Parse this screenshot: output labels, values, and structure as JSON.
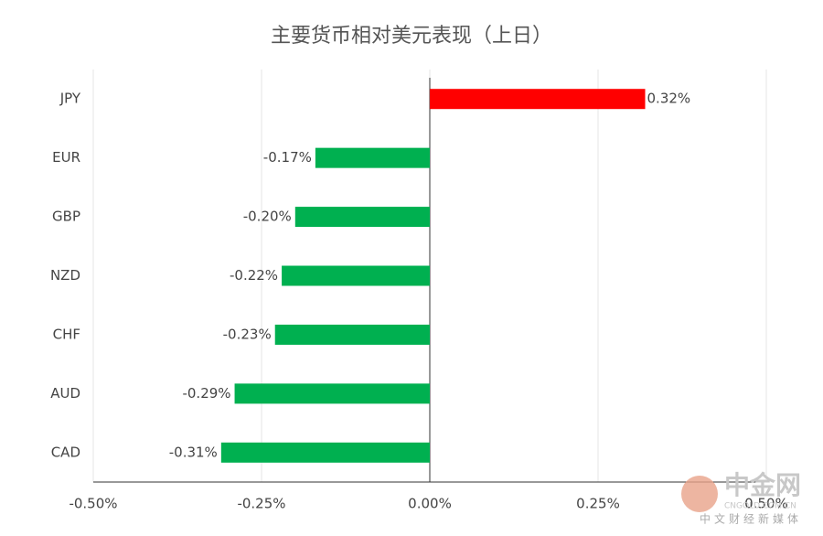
{
  "chart_data": {
    "type": "hbar",
    "title": "主要货币相对美元表现（上日）",
    "categories": [
      "JPY",
      "EUR",
      "GBP",
      "NZD",
      "CHF",
      "AUD",
      "CAD"
    ],
    "values": [
      0.32,
      -0.17,
      -0.2,
      -0.22,
      -0.23,
      -0.29,
      -0.31
    ],
    "value_labels": [
      "0.32%",
      "-0.17%",
      "-0.20%",
      "-0.22%",
      "-0.23%",
      "-0.29%",
      "-0.31%"
    ],
    "positive_color": "#ff0000",
    "negative_color": "#00b050",
    "xlim": [
      -0.5,
      0.5
    ],
    "xticks": [
      {
        "value": -0.5,
        "label": "-0.50%"
      },
      {
        "value": -0.25,
        "label": "-0.25%"
      },
      {
        "value": 0,
        "label": "0.00%"
      },
      {
        "value": 0.25,
        "label": "0.25%"
      },
      {
        "value": 0.5,
        "label": "0.50%"
      }
    ],
    "grid": true
  },
  "watermark": {
    "logo": "中金网",
    "site": "CNGOLD.COM.CN",
    "slogan": "中文财经新媒体"
  }
}
